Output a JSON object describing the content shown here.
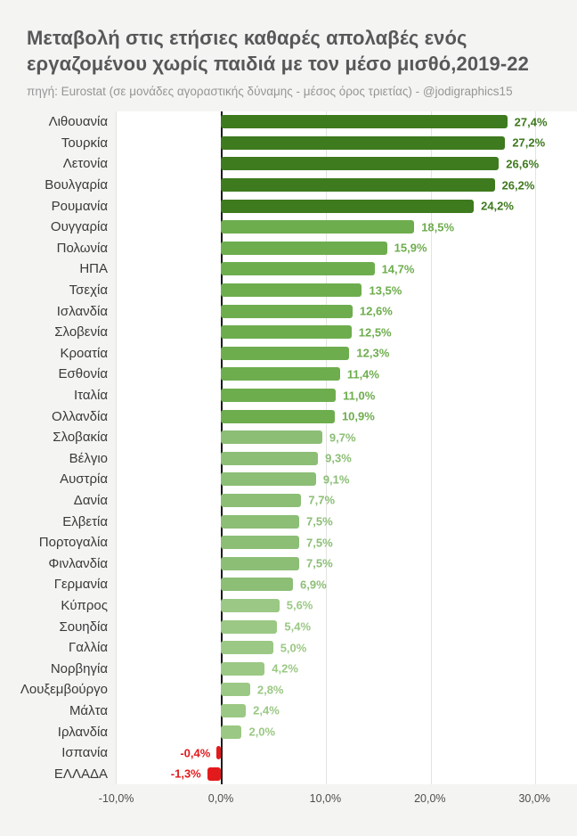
{
  "header": {
    "title": "Μεταβολή στις ετήσιες καθαρές απολαβές ενός εργαζομένου χωρίς παιδιά με τον μέσο μισθό,2019-22",
    "subtitle": "πηγή: Eurostat (σε μονάδες αγοραστικής δύναμης - μέσος όρος τριετίας) - @jodigraphics15"
  },
  "chart_data": {
    "type": "bar",
    "orientation": "horizontal",
    "unit": "%",
    "title": "Μεταβολή στις ετήσιες καθαρές απολαβές ενός εργαζομένου χωρίς παιδιά με τον μέσο μισθό,2019-22",
    "source": "πηγή: Eurostat (σε μονάδες αγοραστικής δύναμης - μέσος όρος τριετίας) - @jodigraphics15",
    "categories": [
      "Λιθουανία",
      "Τουρκία",
      "Λετονία",
      "Βουλγαρία",
      "Ρουμανία",
      "Ουγγαρία",
      "Πολωνία",
      "ΗΠΑ",
      "Τσεχία",
      "Ισλανδία",
      "Σλοβενία",
      "Κροατία",
      "Εσθονία",
      "Ιταλία",
      "Ολλανδία",
      "Σλοβακία",
      "Βέλγιο",
      "Αυστρία",
      "Δανία",
      "Ελβετία",
      "Πορτογαλία",
      "Φινλανδία",
      "Γερμανία",
      "Κύπρος",
      "Σουηδία",
      "Γαλλία",
      "Νορβηγία",
      "Λουξεμβούργο",
      "Μάλτα",
      "Ιρλανδία",
      "Ισπανία",
      "ΕΛΛΑΔΑ"
    ],
    "values": [
      27.4,
      27.2,
      26.6,
      26.2,
      24.2,
      18.5,
      15.9,
      14.7,
      13.5,
      12.6,
      12.5,
      12.3,
      11.4,
      11.0,
      10.9,
      9.7,
      9.3,
      9.1,
      7.7,
      7.5,
      7.5,
      7.5,
      6.9,
      5.6,
      5.4,
      5.0,
      4.2,
      2.8,
      2.4,
      2.0,
      -0.4,
      -1.3
    ],
    "value_labels": [
      "27,4%",
      "27,2%",
      "26,6%",
      "26,2%",
      "24,2%",
      "18,5%",
      "15,9%",
      "14,7%",
      "13,5%",
      "12,6%",
      "12,5%",
      "12,3%",
      "11,4%",
      "11,0%",
      "10,9%",
      "9,7%",
      "9,3%",
      "9,1%",
      "7,7%",
      "7,5%",
      "7,5%",
      "7,5%",
      "6,9%",
      "5,6%",
      "5,4%",
      "5,0%",
      "4,2%",
      "2,8%",
      "2,4%",
      "2,0%",
      "-0,4%",
      "-1,3%"
    ],
    "bar_colors": [
      "#3e7a1e",
      "#3e7a1e",
      "#3e7a1e",
      "#3e7a1e",
      "#3e7a1e",
      "#6ead4e",
      "#6ead4e",
      "#6ead4e",
      "#6ead4e",
      "#6ead4e",
      "#6ead4e",
      "#6ead4e",
      "#6ead4e",
      "#6ead4e",
      "#6ead4e",
      "#8cbe76",
      "#8cbe76",
      "#8cbe76",
      "#8cbe76",
      "#8cbe76",
      "#8cbe76",
      "#8cbe76",
      "#8cbe76",
      "#9bc884",
      "#9bc884",
      "#9bc884",
      "#9bc884",
      "#9bc884",
      "#9bc884",
      "#9bc884",
      "#e31a1c",
      "#e31a1c"
    ],
    "x_axis": {
      "tick_labels": [
        "-10,0%",
        "0,0%",
        "10,0%",
        "20,0%",
        "30,0%"
      ],
      "tick_values": [
        -10,
        0,
        10,
        20,
        30
      ],
      "range": [
        -10,
        34.1
      ],
      "grid": true
    },
    "legend": "none",
    "palette": {
      "dark_green": "#3e7a1e",
      "medium_green": "#6ead4e",
      "light_green": "#8cbe76",
      "lighter_green": "#9bc884",
      "negative_red": "#e31a1c"
    }
  }
}
